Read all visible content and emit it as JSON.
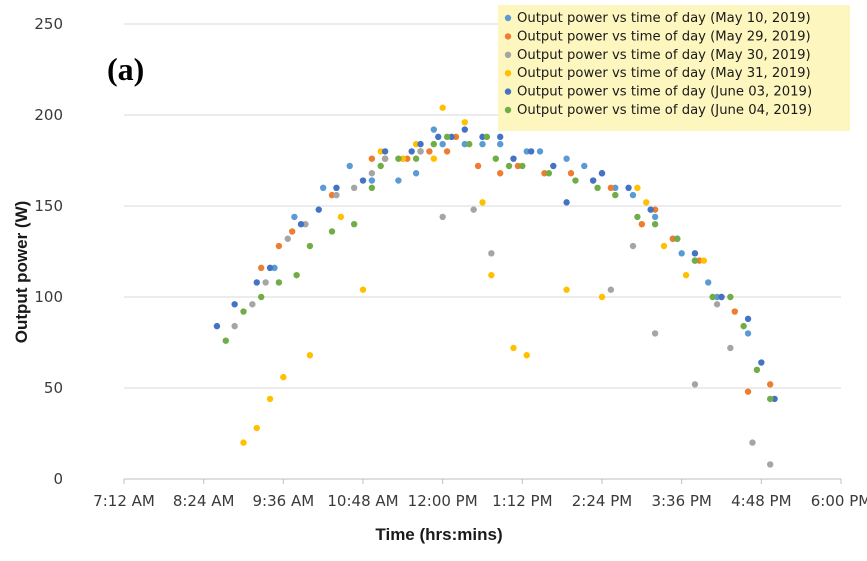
{
  "chart_data": {
    "type": "scatter",
    "panel_label": "(a)",
    "xlabel": "Time (hrs:mins)",
    "ylabel": "Output power (W)",
    "xlim": [
      "07:12",
      "18:00"
    ],
    "ylim": [
      0,
      250
    ],
    "xticks": [
      "7:12 AM",
      "8:24 AM",
      "9:36 AM",
      "10:48 AM",
      "12:00 PM",
      "1:12 PM",
      "2:24 PM",
      "3:36 PM",
      "4:48 PM",
      "6:00 PM"
    ],
    "yticks": [
      0,
      50,
      100,
      150,
      200,
      250
    ],
    "grid": "horizontal",
    "legend_position": "top-right",
    "legend_background": "#fdf6bf",
    "series": [
      {
        "name": "Output power vs time of day (May 10, 2019)",
        "color": "#5b9bd5",
        "points": [
          [
            "09:28",
            116
          ],
          [
            "09:46",
            144
          ],
          [
            "10:12",
            160
          ],
          [
            "10:36",
            172
          ],
          [
            "10:56",
            164
          ],
          [
            "11:20",
            164
          ],
          [
            "11:36",
            168
          ],
          [
            "11:52",
            192
          ],
          [
            "12:00",
            184
          ],
          [
            "12:20",
            184
          ],
          [
            "12:36",
            184
          ],
          [
            "12:52",
            184
          ],
          [
            "13:16",
            180
          ],
          [
            "13:28",
            180
          ],
          [
            "13:52",
            176
          ],
          [
            "14:08",
            172
          ],
          [
            "14:24",
            168
          ],
          [
            "14:36",
            160
          ],
          [
            "14:52",
            156
          ],
          [
            "15:12",
            144
          ],
          [
            "15:28",
            132
          ],
          [
            "15:36",
            124
          ],
          [
            "15:48",
            120
          ],
          [
            "16:00",
            108
          ],
          [
            "16:08",
            100
          ],
          [
            "16:36",
            80
          ]
        ]
      },
      {
        "name": "Output power vs time of day (May 29, 2019)",
        "color": "#ed7d31",
        "points": [
          [
            "09:16",
            116
          ],
          [
            "09:32",
            128
          ],
          [
            "09:44",
            136
          ],
          [
            "10:20",
            156
          ],
          [
            "10:56",
            176
          ],
          [
            "11:08",
            176
          ],
          [
            "11:28",
            176
          ],
          [
            "11:40",
            180
          ],
          [
            "11:48",
            180
          ],
          [
            "12:04",
            180
          ],
          [
            "12:12",
            188
          ],
          [
            "12:32",
            172
          ],
          [
            "12:52",
            168
          ],
          [
            "13:08",
            172
          ],
          [
            "13:32",
            168
          ],
          [
            "13:56",
            168
          ],
          [
            "14:16",
            164
          ],
          [
            "14:32",
            160
          ],
          [
            "15:00",
            140
          ],
          [
            "15:12",
            148
          ],
          [
            "15:28",
            132
          ],
          [
            "15:52",
            120
          ],
          [
            "16:12",
            100
          ],
          [
            "16:24",
            92
          ],
          [
            "16:36",
            48
          ],
          [
            "16:56",
            52
          ]
        ]
      },
      {
        "name": "Output power vs time of day (May 30, 2019)",
        "color": "#a5a5a5",
        "points": [
          [
            "08:52",
            84
          ],
          [
            "09:08",
            96
          ],
          [
            "09:20",
            108
          ],
          [
            "09:40",
            132
          ],
          [
            "09:56",
            140
          ],
          [
            "10:24",
            156
          ],
          [
            "10:40",
            160
          ],
          [
            "10:56",
            168
          ],
          [
            "11:08",
            176
          ],
          [
            "11:24",
            176
          ],
          [
            "11:40",
            180
          ],
          [
            "12:00",
            144
          ],
          [
            "12:28",
            148
          ],
          [
            "12:44",
            124
          ],
          [
            "14:32",
            104
          ],
          [
            "14:52",
            128
          ],
          [
            "15:12",
            80
          ],
          [
            "15:48",
            52
          ],
          [
            "16:08",
            96
          ],
          [
            "16:20",
            72
          ],
          [
            "16:40",
            20
          ],
          [
            "16:56",
            8
          ]
        ]
      },
      {
        "name": "Output power vs time of day (May 31, 2019)",
        "color": "#ffc000",
        "points": [
          [
            "09:00",
            20
          ],
          [
            "09:12",
            28
          ],
          [
            "09:24",
            44
          ],
          [
            "09:36",
            56
          ],
          [
            "10:00",
            68
          ],
          [
            "10:28",
            144
          ],
          [
            "10:48",
            104
          ],
          [
            "11:04",
            180
          ],
          [
            "11:24",
            176
          ],
          [
            "11:36",
            184
          ],
          [
            "11:52",
            176
          ],
          [
            "12:00",
            204
          ],
          [
            "12:20",
            196
          ],
          [
            "12:36",
            152
          ],
          [
            "12:44",
            112
          ],
          [
            "13:04",
            72
          ],
          [
            "13:16",
            68
          ],
          [
            "13:52",
            104
          ],
          [
            "14:24",
            100
          ],
          [
            "14:56",
            160
          ],
          [
            "15:04",
            152
          ],
          [
            "15:20",
            128
          ],
          [
            "15:40",
            112
          ],
          [
            "15:56",
            120
          ]
        ]
      },
      {
        "name": "Output power vs time of day (June 03, 2019)",
        "color": "#4472c4",
        "points": [
          [
            "08:36",
            84
          ],
          [
            "08:52",
            96
          ],
          [
            "09:12",
            108
          ],
          [
            "09:24",
            116
          ],
          [
            "09:52",
            140
          ],
          [
            "10:08",
            148
          ],
          [
            "10:24",
            160
          ],
          [
            "10:48",
            164
          ],
          [
            "11:08",
            180
          ],
          [
            "11:32",
            180
          ],
          [
            "11:40",
            184
          ],
          [
            "11:56",
            188
          ],
          [
            "12:08",
            188
          ],
          [
            "12:20",
            192
          ],
          [
            "12:36",
            188
          ],
          [
            "12:52",
            188
          ],
          [
            "13:04",
            176
          ],
          [
            "13:20",
            180
          ],
          [
            "13:40",
            172
          ],
          [
            "13:52",
            152
          ],
          [
            "14:16",
            164
          ],
          [
            "14:24",
            168
          ],
          [
            "14:48",
            160
          ],
          [
            "15:08",
            148
          ],
          [
            "15:32",
            132
          ],
          [
            "15:48",
            124
          ],
          [
            "16:12",
            100
          ],
          [
            "16:36",
            88
          ],
          [
            "16:48",
            64
          ],
          [
            "17:00",
            44
          ]
        ]
      },
      {
        "name": "Output power vs time of day (June 04, 2019)",
        "color": "#70ad47",
        "points": [
          [
            "08:44",
            76
          ],
          [
            "09:00",
            92
          ],
          [
            "09:16",
            100
          ],
          [
            "09:32",
            108
          ],
          [
            "09:48",
            112
          ],
          [
            "10:00",
            128
          ],
          [
            "10:20",
            136
          ],
          [
            "10:40",
            140
          ],
          [
            "10:56",
            160
          ],
          [
            "11:04",
            172
          ],
          [
            "11:20",
            176
          ],
          [
            "11:36",
            176
          ],
          [
            "11:52",
            184
          ],
          [
            "12:04",
            188
          ],
          [
            "12:24",
            184
          ],
          [
            "12:40",
            188
          ],
          [
            "12:48",
            176
          ],
          [
            "13:00",
            172
          ],
          [
            "13:12",
            172
          ],
          [
            "13:36",
            168
          ],
          [
            "14:00",
            164
          ],
          [
            "14:20",
            160
          ],
          [
            "14:36",
            156
          ],
          [
            "14:56",
            144
          ],
          [
            "15:12",
            140
          ],
          [
            "15:32",
            132
          ],
          [
            "15:48",
            120
          ],
          [
            "16:04",
            100
          ],
          [
            "16:20",
            100
          ],
          [
            "16:32",
            84
          ],
          [
            "16:44",
            60
          ],
          [
            "16:56",
            44
          ]
        ]
      }
    ]
  }
}
